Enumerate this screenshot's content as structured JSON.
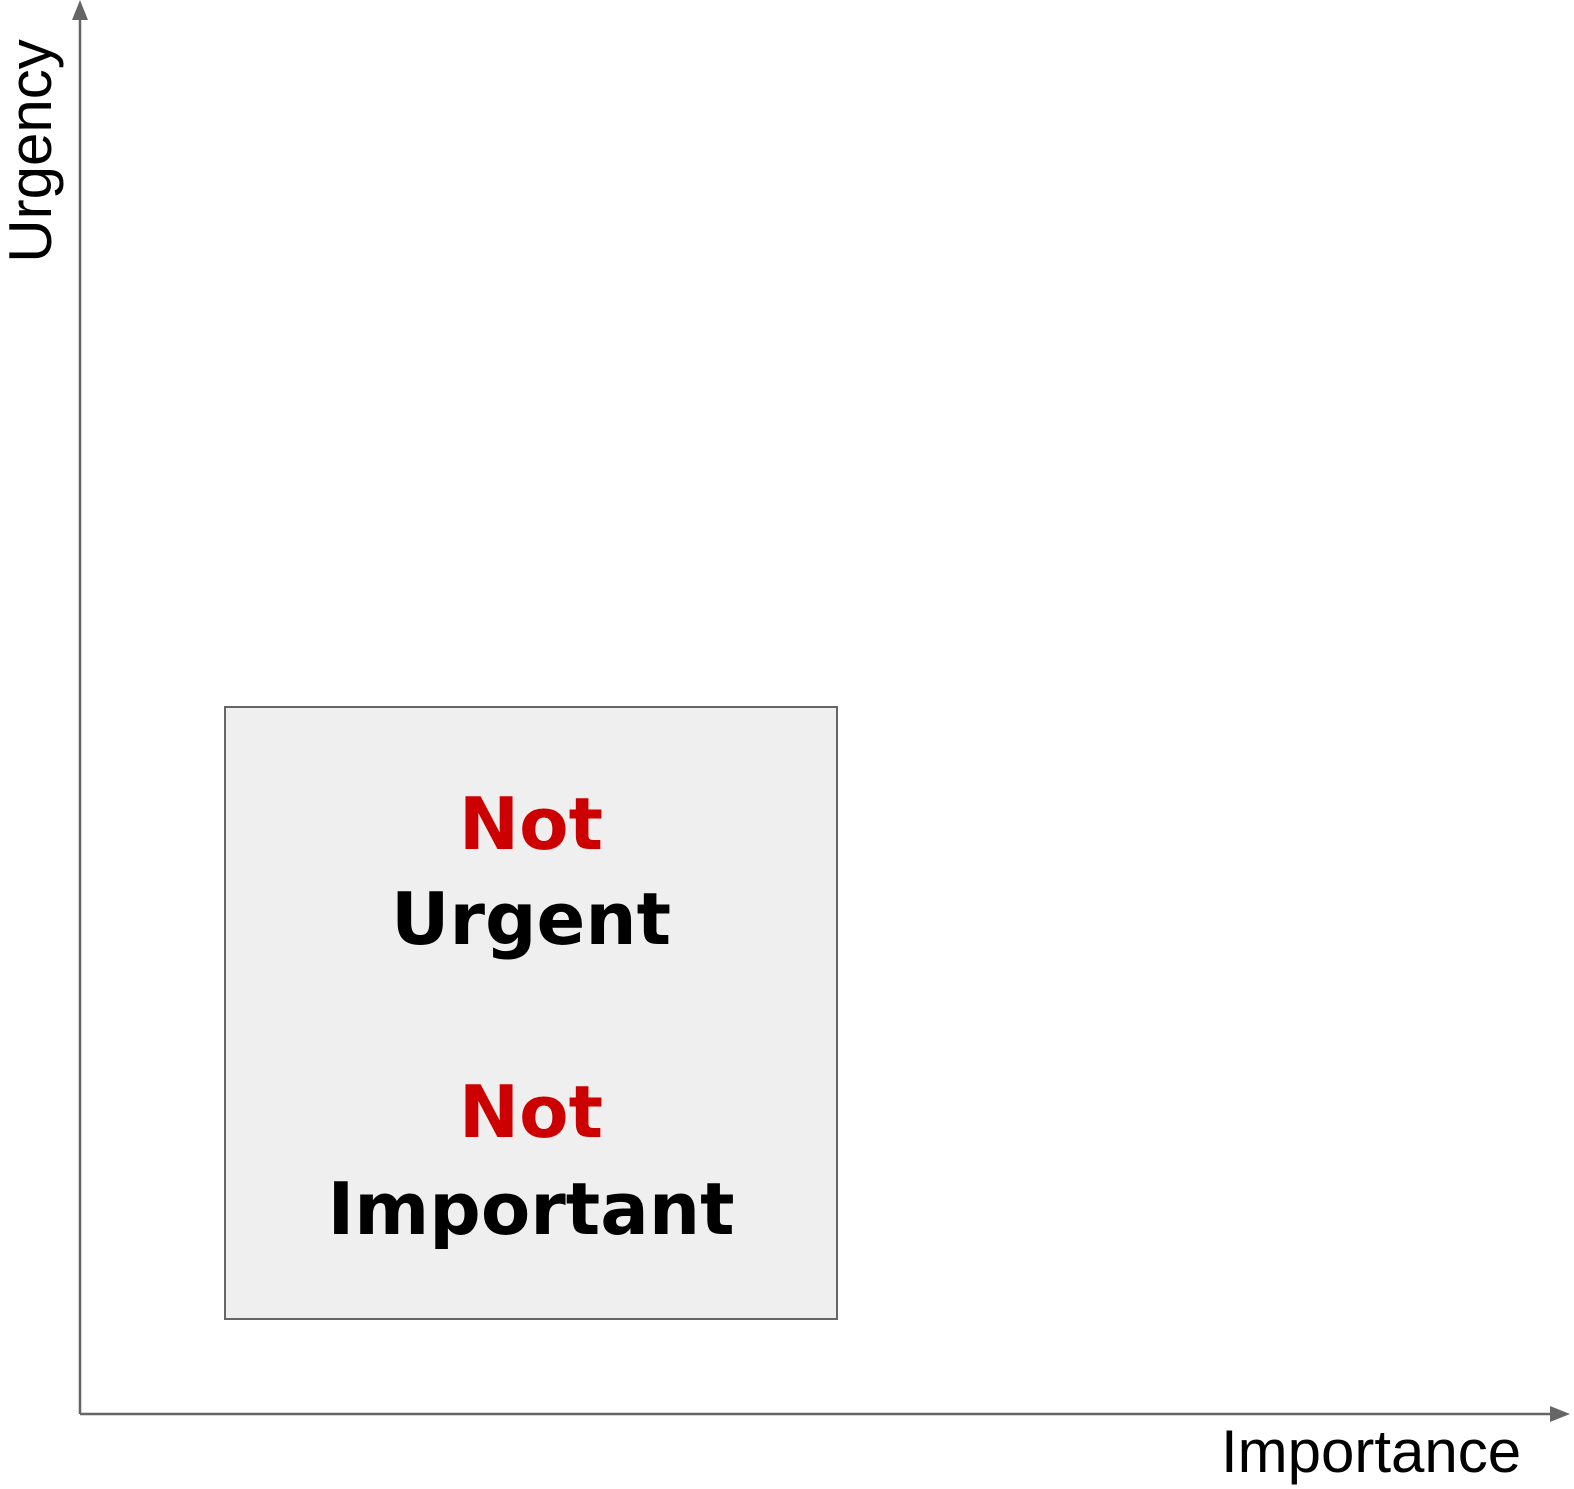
{
  "axes": {
    "x_label": "Importance",
    "y_label": "Urgency"
  },
  "quadrant": {
    "urgency_qualifier": "Not",
    "urgency_label": "Urgent",
    "importance_qualifier": "Not",
    "importance_label": "Important"
  },
  "colors": {
    "qualifier": "#cc0000",
    "label": "#000000",
    "axis": "#666666",
    "quadrant_fill": "#efefef"
  }
}
